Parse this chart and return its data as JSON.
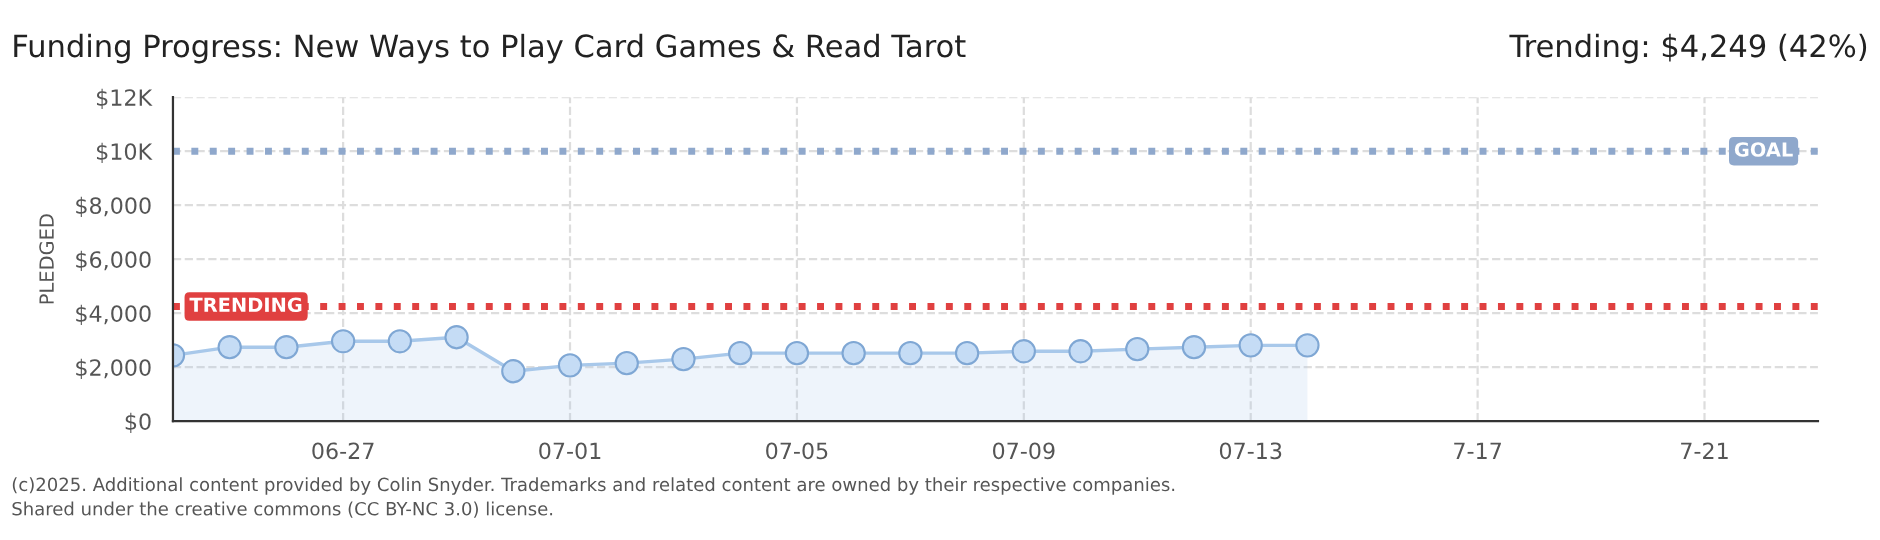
{
  "chart_data": {
    "type": "area",
    "title": "Funding Progress: New Ways to Play Card Games & Read Tarot",
    "ylabel": "PLEDGED",
    "annotations": [
      "Trending: $4,249 (42%)",
      "(c)2025. Additional content provided by Colin Snyder. Trademarks and related content are owned by their respective companies.",
      "Shared under the creative commons (CC BY-NC 3.0) license."
    ],
    "x": [
      "2025-06-24",
      "2025-06-25",
      "2025-06-26",
      "2025-06-27",
      "2025-06-28",
      "2025-06-29",
      "2025-06-30",
      "2025-07-01",
      "2025-07-02",
      "2025-07-03",
      "2025-07-04",
      "2025-07-05",
      "2025-07-06",
      "2025-07-07",
      "2025-07-08",
      "2025-07-09",
      "2025-07-10",
      "2025-07-11",
      "2025-07-12",
      "2025-07-13",
      "2025-07-14"
    ],
    "series": [
      {
        "color": "#a8c8ea",
        "values": [
          2440,
          2740,
          2740,
          2960,
          2960,
          3110,
          1850,
          2070,
          2150,
          2300,
          2520,
          2520,
          2520,
          2520,
          2520,
          2590,
          2590,
          2670,
          2740,
          2810,
          2810
        ]
      }
    ],
    "xlim": [
      "2025-06-24",
      "2025-07-23"
    ],
    "xticks": [
      {
        "value": "2025-06-27",
        "label": "06-27"
      },
      {
        "value": "2025-07-01",
        "label": "07-01"
      },
      {
        "value": "2025-07-05",
        "label": "07-05"
      },
      {
        "value": "2025-07-09",
        "label": "07-09"
      },
      {
        "value": "2025-07-13",
        "label": "07-13"
      },
      {
        "value": "2025-07-17",
        "label": "7-17"
      },
      {
        "value": "2025-07-21",
        "label": "7-21"
      }
    ],
    "ylim": [
      0,
      12000
    ],
    "yticks": [
      {
        "value": 0,
        "label": "$0"
      },
      {
        "value": 2000,
        "label": "$2,000"
      },
      {
        "value": 4000,
        "label": "$4,000"
      },
      {
        "value": 6000,
        "label": "$6,000"
      },
      {
        "value": 8000,
        "label": "$8,000"
      },
      {
        "value": 10000,
        "label": "$10K"
      },
      {
        "value": 12000,
        "label": "$12K"
      }
    ],
    "ref_lines": [
      {
        "axis": "y",
        "value": 10000,
        "label": "GOAL",
        "color": "#8fa8cc",
        "line_style": "dotted"
      },
      {
        "axis": "y",
        "value": 4249,
        "label": "TRENDING",
        "color": "#e04040",
        "line_style": "dotted"
      }
    ],
    "grid": true,
    "marker": "circle",
    "legend": false
  }
}
